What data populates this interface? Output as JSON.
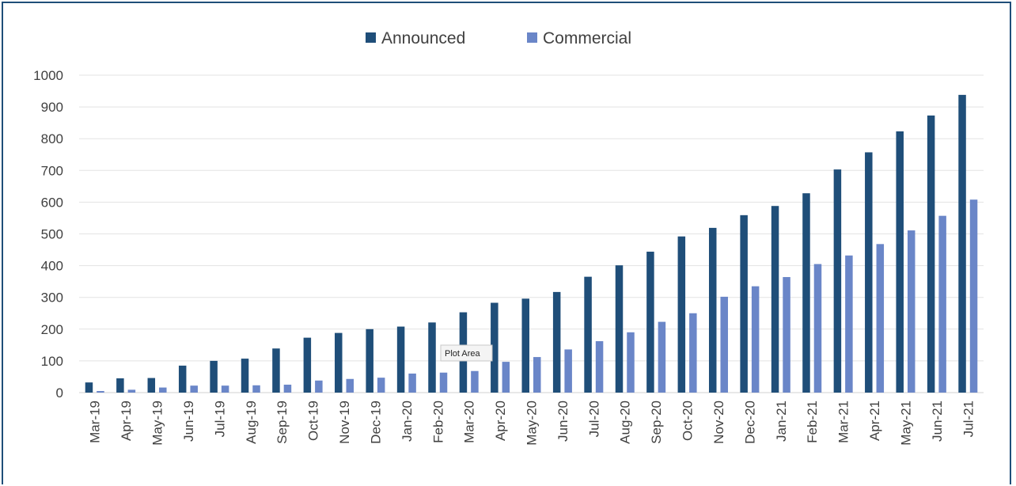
{
  "chart_data": {
    "type": "bar",
    "title": "",
    "xlabel": "",
    "ylabel": "",
    "ylim": [
      0,
      1000
    ],
    "yticks": [
      0,
      100,
      200,
      300,
      400,
      500,
      600,
      700,
      800,
      900,
      1000
    ],
    "grid": true,
    "legend_position": "top",
    "categories": [
      "Mar-19",
      "Apr-19",
      "May-19",
      "Jun-19",
      "Jul-19",
      "Aug-19",
      "Sep-19",
      "Oct-19",
      "Nov-19",
      "Dec-19",
      "Jan-20",
      "Feb-20",
      "Mar-20",
      "Apr-20",
      "May-20",
      "Jun-20",
      "Jul-20",
      "Aug-20",
      "Sep-20",
      "Oct-20",
      "Nov-20",
      "Dec-20",
      "Jan-21",
      "Feb-21",
      "Mar-21",
      "Apr-21",
      "May-21",
      "Jun-21",
      "Jul-21"
    ],
    "series": [
      {
        "name": "Announced",
        "color": "#1f4e79",
        "values": [
          32,
          45,
          46,
          85,
          100,
          107,
          139,
          173,
          188,
          200,
          208,
          221,
          253,
          283,
          296,
          317,
          365,
          401,
          444,
          492,
          519,
          559,
          588,
          628,
          703,
          757,
          823,
          873,
          938
        ]
      },
      {
        "name": "Commercial",
        "color": "#6a86c8",
        "values": [
          5,
          9,
          16,
          22,
          22,
          23,
          25,
          38,
          43,
          47,
          60,
          63,
          68,
          97,
          112,
          136,
          162,
          190,
          223,
          250,
          302,
          335,
          364,
          405,
          432,
          468,
          511,
          557,
          608
        ]
      }
    ]
  },
  "tooltip": {
    "text": "Plot Area"
  }
}
